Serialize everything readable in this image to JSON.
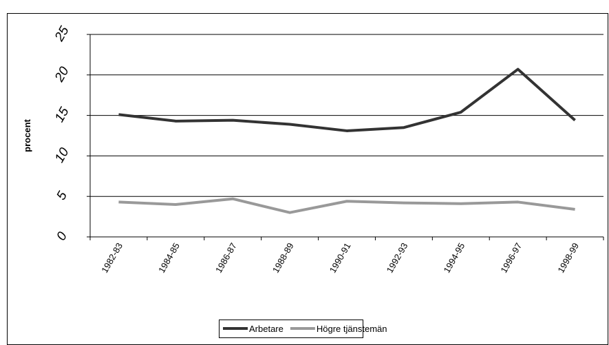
{
  "chart_data": {
    "type": "line",
    "y_label": "procent",
    "categories": [
      "1982-83",
      "1984-85",
      "1986-87",
      "1988-89",
      "1990-91",
      "1992-93",
      "1994-95",
      "1996-97",
      "1998-99"
    ],
    "series": [
      {
        "name": "Arbetare",
        "color": "#333333",
        "values": [
          15.1,
          14.3,
          14.4,
          13.9,
          13.1,
          13.5,
          15.4,
          20.7,
          14.4
        ]
      },
      {
        "name": "Högre tjänstemän",
        "color": "#999999",
        "values": [
          4.3,
          4.0,
          4.7,
          3.0,
          4.4,
          4.2,
          4.1,
          4.3,
          3.4
        ]
      }
    ],
    "ylim": [
      0,
      25
    ],
    "yticks": [
      0,
      5,
      10,
      15,
      20,
      25
    ],
    "grid": true
  }
}
